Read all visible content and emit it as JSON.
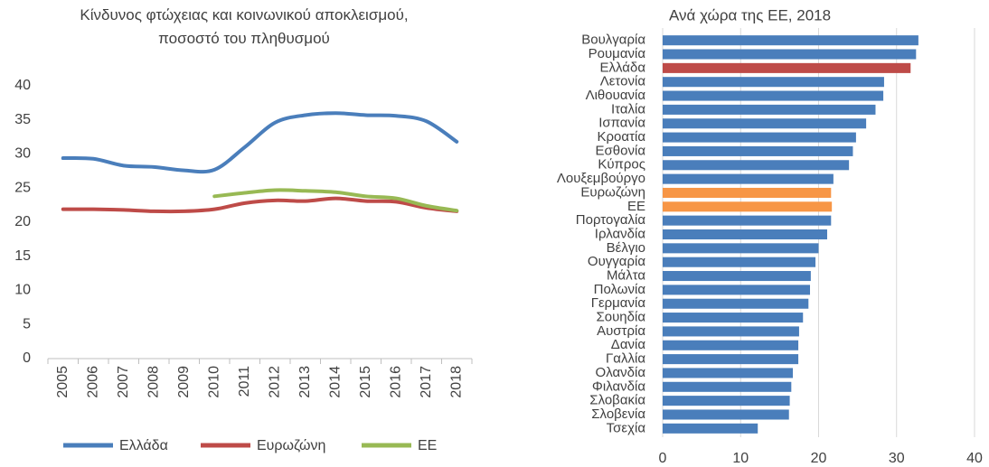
{
  "chart_data": [
    {
      "type": "line",
      "title": "Κίνδυνος φτώχειας και κοινωνικού αποκλεισμού, ποσοστό του πληθυσμού",
      "categories": [
        "2005",
        "2006",
        "2007",
        "2008",
        "2009",
        "2010",
        "2011",
        "2012",
        "2013",
        "2014",
        "2015",
        "2016",
        "2017",
        "2018"
      ],
      "series": [
        {
          "name": "Ελλάδα",
          "color": "#4a7ebb",
          "values": [
            29.4,
            29.3,
            28.3,
            28.1,
            27.6,
            27.7,
            31.0,
            34.6,
            35.7,
            36.0,
            35.7,
            35.6,
            34.8,
            31.8
          ]
        },
        {
          "name": "Ευρωζώνη",
          "color": "#be4b48",
          "values": [
            21.9,
            21.9,
            21.8,
            21.6,
            21.6,
            21.9,
            22.8,
            23.2,
            23.1,
            23.5,
            23.1,
            23.0,
            22.1,
            21.6
          ]
        },
        {
          "name": "ΕΕ",
          "color": "#98b954",
          "values": [
            null,
            null,
            null,
            null,
            null,
            23.8,
            24.3,
            24.7,
            24.6,
            24.4,
            23.8,
            23.5,
            22.4,
            21.7
          ]
        }
      ],
      "ylim": [
        0,
        40
      ],
      "yticks": [
        0,
        5,
        10,
        15,
        20,
        25,
        30,
        35,
        40
      ],
      "legend": "bottom"
    },
    {
      "type": "barh",
      "title": "Ανά χώρα της ΕΕ, 2018",
      "categories": [
        "Βουλγαρία",
        "Ρουμανία",
        "Ελλάδα",
        "Λετονία",
        "Λιθουανία",
        "Ιταλία",
        "Ισπανία",
        "Κροατία",
        "Εσθονία",
        "Κύπρος",
        "Λουξεμβούργο",
        "Ευρωζώνη",
        "ΕΕ",
        "Πορτογαλία",
        "Ιρλανδία",
        "Βέλγιο",
        "Ουγγαρία",
        "Μάλτα",
        "Πολωνία",
        "Γερμανία",
        "Σουηδία",
        "Αυστρία",
        "Δανία",
        "Γαλλία",
        "Ολανδία",
        "Φιλανδία",
        "Σλοβακία",
        "Σλοβενία",
        "Τσεχία"
      ],
      "values": [
        32.8,
        32.5,
        31.8,
        28.4,
        28.3,
        27.3,
        26.1,
        24.8,
        24.4,
        23.9,
        21.9,
        21.6,
        21.7,
        21.6,
        21.1,
        20.0,
        19.6,
        19.0,
        18.9,
        18.7,
        18.0,
        17.5,
        17.4,
        17.4,
        16.7,
        16.5,
        16.3,
        16.2,
        12.2
      ],
      "colors": [
        "#4a7ebb",
        "#4a7ebb",
        "#be4b48",
        "#4a7ebb",
        "#4a7ebb",
        "#4a7ebb",
        "#4a7ebb",
        "#4a7ebb",
        "#4a7ebb",
        "#4a7ebb",
        "#4a7ebb",
        "#f79646",
        "#f79646",
        "#4a7ebb",
        "#4a7ebb",
        "#4a7ebb",
        "#4a7ebb",
        "#4a7ebb",
        "#4a7ebb",
        "#4a7ebb",
        "#4a7ebb",
        "#4a7ebb",
        "#4a7ebb",
        "#4a7ebb",
        "#4a7ebb",
        "#4a7ebb",
        "#4a7ebb",
        "#4a7ebb",
        "#4a7ebb"
      ],
      "xlim": [
        0,
        40
      ],
      "xticks": [
        0,
        10,
        20,
        30,
        40
      ],
      "grid": true
    }
  ]
}
